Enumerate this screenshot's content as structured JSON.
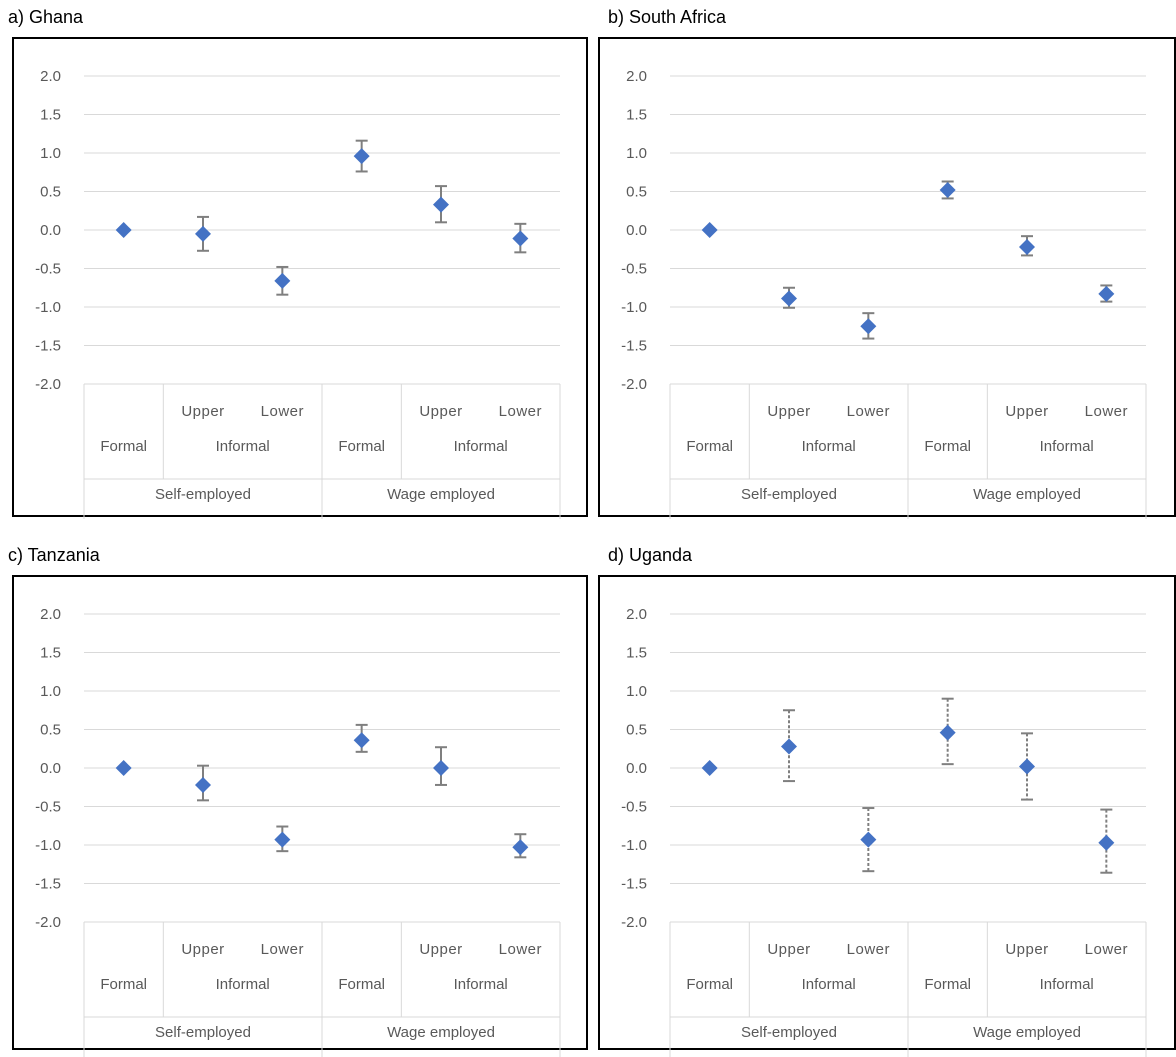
{
  "chart_data": [
    {
      "type": "scatter",
      "title": "a) Ghana",
      "ylim": [
        -2.0,
        2.0
      ],
      "yticks": [
        "2.0",
        "1.5",
        "1.0",
        "0.5",
        "0.0",
        "-0.5",
        "-1.0",
        "-1.5",
        "-2.0"
      ],
      "categories": [
        {
          "group": "Self-employed",
          "sub": "",
          "label": "Formal"
        },
        {
          "group": "Self-employed",
          "sub": "Informal",
          "label": "Upper"
        },
        {
          "group": "Self-employed",
          "sub": "Informal",
          "label": "Lower"
        },
        {
          "group": "Wage employed",
          "sub": "",
          "label": "Formal"
        },
        {
          "group": "Wage employed",
          "sub": "Informal",
          "label": "Upper"
        },
        {
          "group": "Wage employed",
          "sub": "Informal",
          "label": "Lower"
        }
      ],
      "groups": [
        "Self-employed",
        "Wage employed"
      ],
      "grid": true,
      "error_bar_style": "solid",
      "marker_color": "#4472C4",
      "values": [
        0.0,
        -0.05,
        -0.66,
        0.96,
        0.33,
        -0.11
      ],
      "ci_upper": [
        null,
        0.17,
        -0.48,
        1.16,
        0.57,
        0.08
      ],
      "ci_lower": [
        null,
        -0.27,
        -0.84,
        0.76,
        0.1,
        -0.29
      ]
    },
    {
      "type": "scatter",
      "title": "b) South Africa",
      "ylim": [
        -2.0,
        2.0
      ],
      "yticks": [
        "2.0",
        "1.5",
        "1.0",
        "0.5",
        "0.0",
        "-0.5",
        "-1.0",
        "-1.5",
        "-2.0"
      ],
      "categories": [
        {
          "group": "Self-employed",
          "sub": "",
          "label": "Formal"
        },
        {
          "group": "Self-employed",
          "sub": "Informal",
          "label": "Upper"
        },
        {
          "group": "Self-employed",
          "sub": "Informal",
          "label": "Lower"
        },
        {
          "group": "Wage employed",
          "sub": "",
          "label": "Formal"
        },
        {
          "group": "Wage employed",
          "sub": "Informal",
          "label": "Upper"
        },
        {
          "group": "Wage employed",
          "sub": "Informal",
          "label": "Lower"
        }
      ],
      "groups": [
        "Self-employed",
        "Wage employed"
      ],
      "grid": true,
      "error_bar_style": "solid",
      "marker_color": "#4472C4",
      "values": [
        0.0,
        -0.89,
        -1.25,
        0.52,
        -0.22,
        -0.83
      ],
      "ci_upper": [
        null,
        -0.75,
        -1.08,
        0.63,
        -0.08,
        -0.72
      ],
      "ci_lower": [
        null,
        -1.01,
        -1.41,
        0.41,
        -0.33,
        -0.93
      ]
    },
    {
      "type": "scatter",
      "title": "c) Tanzania",
      "ylim": [
        -2.0,
        2.0
      ],
      "yticks": [
        "2.0",
        "1.5",
        "1.0",
        "0.5",
        "0.0",
        "-0.5",
        "-1.0",
        "-1.5",
        "-2.0"
      ],
      "categories": [
        {
          "group": "Self-employed",
          "sub": "",
          "label": "Formal"
        },
        {
          "group": "Self-employed",
          "sub": "Informal",
          "label": "Upper"
        },
        {
          "group": "Self-employed",
          "sub": "Informal",
          "label": "Lower"
        },
        {
          "group": "Wage employed",
          "sub": "",
          "label": "Formal"
        },
        {
          "group": "Wage employed",
          "sub": "Informal",
          "label": "Upper"
        },
        {
          "group": "Wage employed",
          "sub": "Informal",
          "label": "Lower"
        }
      ],
      "groups": [
        "Self-employed",
        "Wage employed"
      ],
      "grid": true,
      "error_bar_style": "solid",
      "marker_color": "#4472C4",
      "values": [
        0.0,
        -0.22,
        -0.93,
        0.36,
        0.0,
        -1.03
      ],
      "ci_upper": [
        null,
        0.03,
        -0.76,
        0.56,
        0.27,
        -0.86
      ],
      "ci_lower": [
        null,
        -0.42,
        -1.08,
        0.21,
        -0.22,
        -1.16
      ]
    },
    {
      "type": "scatter",
      "title": "d) Uganda",
      "ylim": [
        -2.0,
        2.0
      ],
      "yticks": [
        "2.0",
        "1.5",
        "1.0",
        "0.5",
        "0.0",
        "-0.5",
        "-1.0",
        "-1.5",
        "-2.0"
      ],
      "categories": [
        {
          "group": "Self-employed",
          "sub": "",
          "label": "Formal"
        },
        {
          "group": "Self-employed",
          "sub": "Informal",
          "label": "Upper"
        },
        {
          "group": "Self-employed",
          "sub": "Informal",
          "label": "Lower"
        },
        {
          "group": "Wage employed",
          "sub": "",
          "label": "Formal"
        },
        {
          "group": "Wage employed",
          "sub": "Informal",
          "label": "Upper"
        },
        {
          "group": "Wage employed",
          "sub": "Informal",
          "label": "Lower"
        }
      ],
      "groups": [
        "Self-employed",
        "Wage employed"
      ],
      "grid": true,
      "error_bar_style": "dashed",
      "marker_color": "#4472C4",
      "values": [
        0.0,
        0.28,
        -0.93,
        0.46,
        0.02,
        -0.97
      ],
      "ci_upper": [
        null,
        0.75,
        -0.52,
        0.9,
        0.45,
        -0.54
      ],
      "ci_lower": [
        null,
        -0.17,
        -1.34,
        0.05,
        -0.41,
        -1.36
      ]
    }
  ]
}
